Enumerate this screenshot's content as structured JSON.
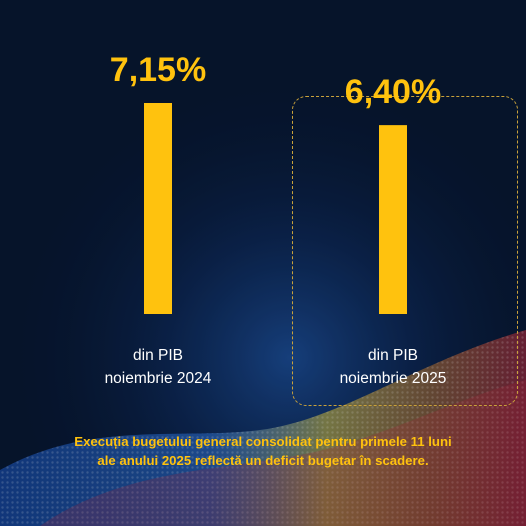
{
  "colors": {
    "bar": "#ffc20e",
    "value_text": "#ffc20e",
    "category_text": "#ffffff",
    "caption_text": "#ffc20e",
    "highlight_border": "#caa23a",
    "background": "#07142b"
  },
  "chart_data": {
    "type": "bar",
    "categories": [
      [
        "din PIB",
        "noiembrie 2024"
      ],
      [
        "din PIB",
        "noiembrie 2025"
      ]
    ],
    "values": [
      7.15,
      6.4
    ],
    "value_labels": [
      "7,15%",
      "6,40%"
    ],
    "unit": "%",
    "highlighted_category_index": 1,
    "ylim": [
      0,
      7.15
    ],
    "grid": false,
    "legend": "none"
  },
  "caption": {
    "lines": [
      "Execuția bugetului general consolidat pentru primele 11 luni",
      "ale anului 2025 reflectă un deficit bugetar în scadere."
    ]
  }
}
